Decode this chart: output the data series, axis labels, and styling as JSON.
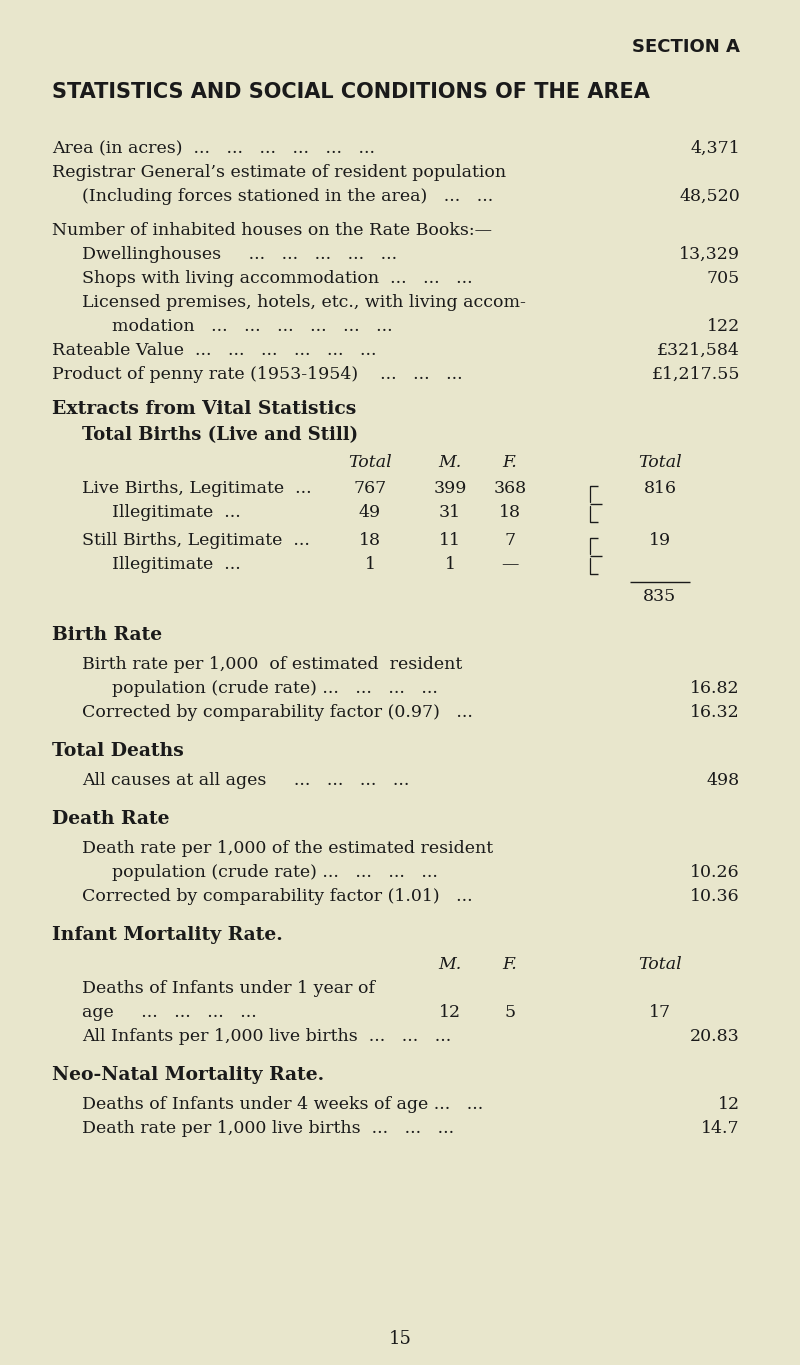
{
  "bg_color": "#e8e6cc",
  "text_color": "#1a1a1a",
  "page_number": "15",
  "section_header": "SECTION A",
  "main_title": "STATISTICS AND SOCIAL CONDITIONS OF THE AREA"
}
